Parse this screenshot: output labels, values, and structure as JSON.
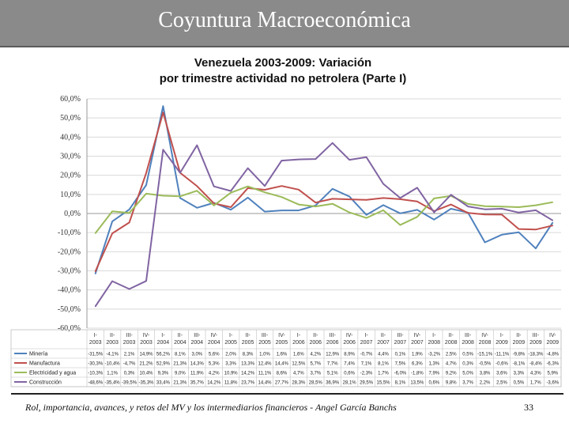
{
  "header": {
    "title": "Coyuntura Macroeconómica"
  },
  "footer": {
    "text": "Rol, importancia, avances, y retos del MV y los intermediarios financieros - Angel García Banchs",
    "page_number": "33"
  },
  "chart_data": {
    "type": "line",
    "title_line1": "Venezuela 2003-2009: Variación",
    "title_line2": "por trimestre actividad no petrolera (Parte I)",
    "ylim": [
      -60,
      60
    ],
    "yticks": [
      "60,0%",
      "50,0%",
      "40,0%",
      "30,0%",
      "20,0%",
      "10,0%",
      "0,0%",
      "-10,0%",
      "-20,0%",
      "-30,0%",
      "-40,0%",
      "-50,0%",
      "-60,0%"
    ],
    "ytick_values": [
      60,
      50,
      40,
      30,
      20,
      10,
      0,
      -10,
      -20,
      -30,
      -40,
      -50,
      -60
    ],
    "categories": [
      "I-2003",
      "II-2003",
      "III-2003",
      "IV-2003",
      "I-2004",
      "II-2004",
      "III-2004",
      "IV-2004",
      "I-2005",
      "II-2005",
      "III-2005",
      "IV-2005",
      "I-2006",
      "II-2006",
      "III-2006",
      "IV-2006",
      "I-2007",
      "II-2007",
      "III-2007",
      "IV-2007",
      "I-2008",
      "II-2008",
      "III-2008",
      "IV-2008",
      "I-2009",
      "II-2009",
      "III-2009",
      "IV-2009"
    ],
    "series": [
      {
        "name": "Minería",
        "color": "#4f81bd",
        "values": [
          -31.5,
          -4.1,
          2.1,
          14.9,
          56.2,
          8.1,
          3.0,
          5.6,
          2.0,
          8.3,
          1.0,
          1.6,
          1.6,
          4.2,
          12.9,
          8.9,
          -0.7,
          4.4,
          0.1,
          1.9,
          -3.2,
          2.5,
          0.5,
          -15.1,
          -11.1,
          -9.8,
          -18.3,
          -4.8
        ],
        "labels": [
          "-31,5%",
          "-4,1%",
          "2,1%",
          "14,9%",
          "56,2%",
          "8,1%",
          "3,0%",
          "5,6%",
          "2,0%",
          "8,3%",
          "1,0%",
          "1,6%",
          "1,6%",
          "4,2%",
          "12,9%",
          "8,9%",
          "-0,7%",
          "4,4%",
          "0,1%",
          "1,9%",
          "-3,2%",
          "2,5%",
          "0,5%",
          "-15,1%",
          "-11,1%",
          "-9,8%",
          "-18,3%",
          "-4,8%"
        ]
      },
      {
        "name": "Manufactura",
        "color": "#c0504d",
        "values": [
          -30.3,
          -10.4,
          -4.7,
          21.2,
          52.9,
          21.3,
          14.3,
          5.3,
          3.3,
          13.3,
          12.4,
          14.4,
          12.5,
          5.7,
          7.7,
          7.4,
          7.1,
          8.1,
          7.5,
          6.3,
          1.3,
          4.7,
          0.3,
          -0.5,
          -0.6,
          -8.1,
          -8.4,
          -6.3
        ],
        "labels": [
          "-30,3%",
          "-10,4%",
          "-4,7%",
          "21,2%",
          "52,9%",
          "21,3%",
          "14,3%",
          "5,3%",
          "3,3%",
          "13,3%",
          "12,4%",
          "14,4%",
          "12,5%",
          "5,7%",
          "7,7%",
          "7,4%",
          "7,1%",
          "8,1%",
          "7,5%",
          "6,3%",
          "1,3%",
          "4,7%",
          "0,3%",
          "-0,5%",
          "-0,6%",
          "-8,1%",
          "-8,4%",
          "-6,3%"
        ]
      },
      {
        "name": "Electricidad y agua",
        "color": "#9bbb59",
        "values": [
          -10.3,
          1.1,
          0.3,
          10.4,
          9.3,
          9.0,
          11.9,
          4.2,
          10.9,
          14.2,
          11.1,
          8.6,
          4.7,
          3.7,
          5.1,
          0.6,
          -2.3,
          1.7,
          -6.0,
          -1.8,
          7.9,
          9.2,
          5.0,
          3.8,
          3.6,
          3.3,
          4.3,
          5.9
        ],
        "labels": [
          "-10,3%",
          "1,1%",
          "0,3%",
          "10,4%",
          "9,3%",
          "9,0%",
          "11,9%",
          "4,2%",
          "10,9%",
          "14,2%",
          "11,1%",
          "8,6%",
          "4,7%",
          "3,7%",
          "5,1%",
          "0,6%",
          "-2,3%",
          "1,7%",
          "-6,0%",
          "-1,8%",
          "7,9%",
          "9,2%",
          "5,0%",
          "3,8%",
          "3,6%",
          "3,3%",
          "4,3%",
          "5,9%"
        ]
      },
      {
        "name": "Construcción",
        "color": "#8064a2",
        "values": [
          -48.6,
          -35.4,
          -39.5,
          -35.3,
          33.4,
          21.3,
          35.7,
          14.2,
          11.8,
          23.7,
          14.4,
          27.7,
          28.3,
          28.5,
          36.9,
          28.1,
          29.5,
          15.5,
          8.1,
          13.5,
          0.6,
          9.8,
          3.7,
          2.2,
          2.5,
          0.5,
          1.7,
          -3.6
        ],
        "labels": [
          "-48,6%",
          "-35,4%",
          "-39,5%",
          "-35,3%",
          "33,4%",
          "21,3%",
          "35,7%",
          "14,2%",
          "11,8%",
          "23,7%",
          "14,4%",
          "27,7%",
          "28,3%",
          "28,5%",
          "36,9%",
          "28,1%",
          "29,5%",
          "15,5%",
          "8,1%",
          "13,5%",
          "0,6%",
          "9,8%",
          "3,7%",
          "2,2%",
          "2,5%",
          "0,5%",
          "1,7%",
          "-3,6%"
        ]
      }
    ]
  }
}
